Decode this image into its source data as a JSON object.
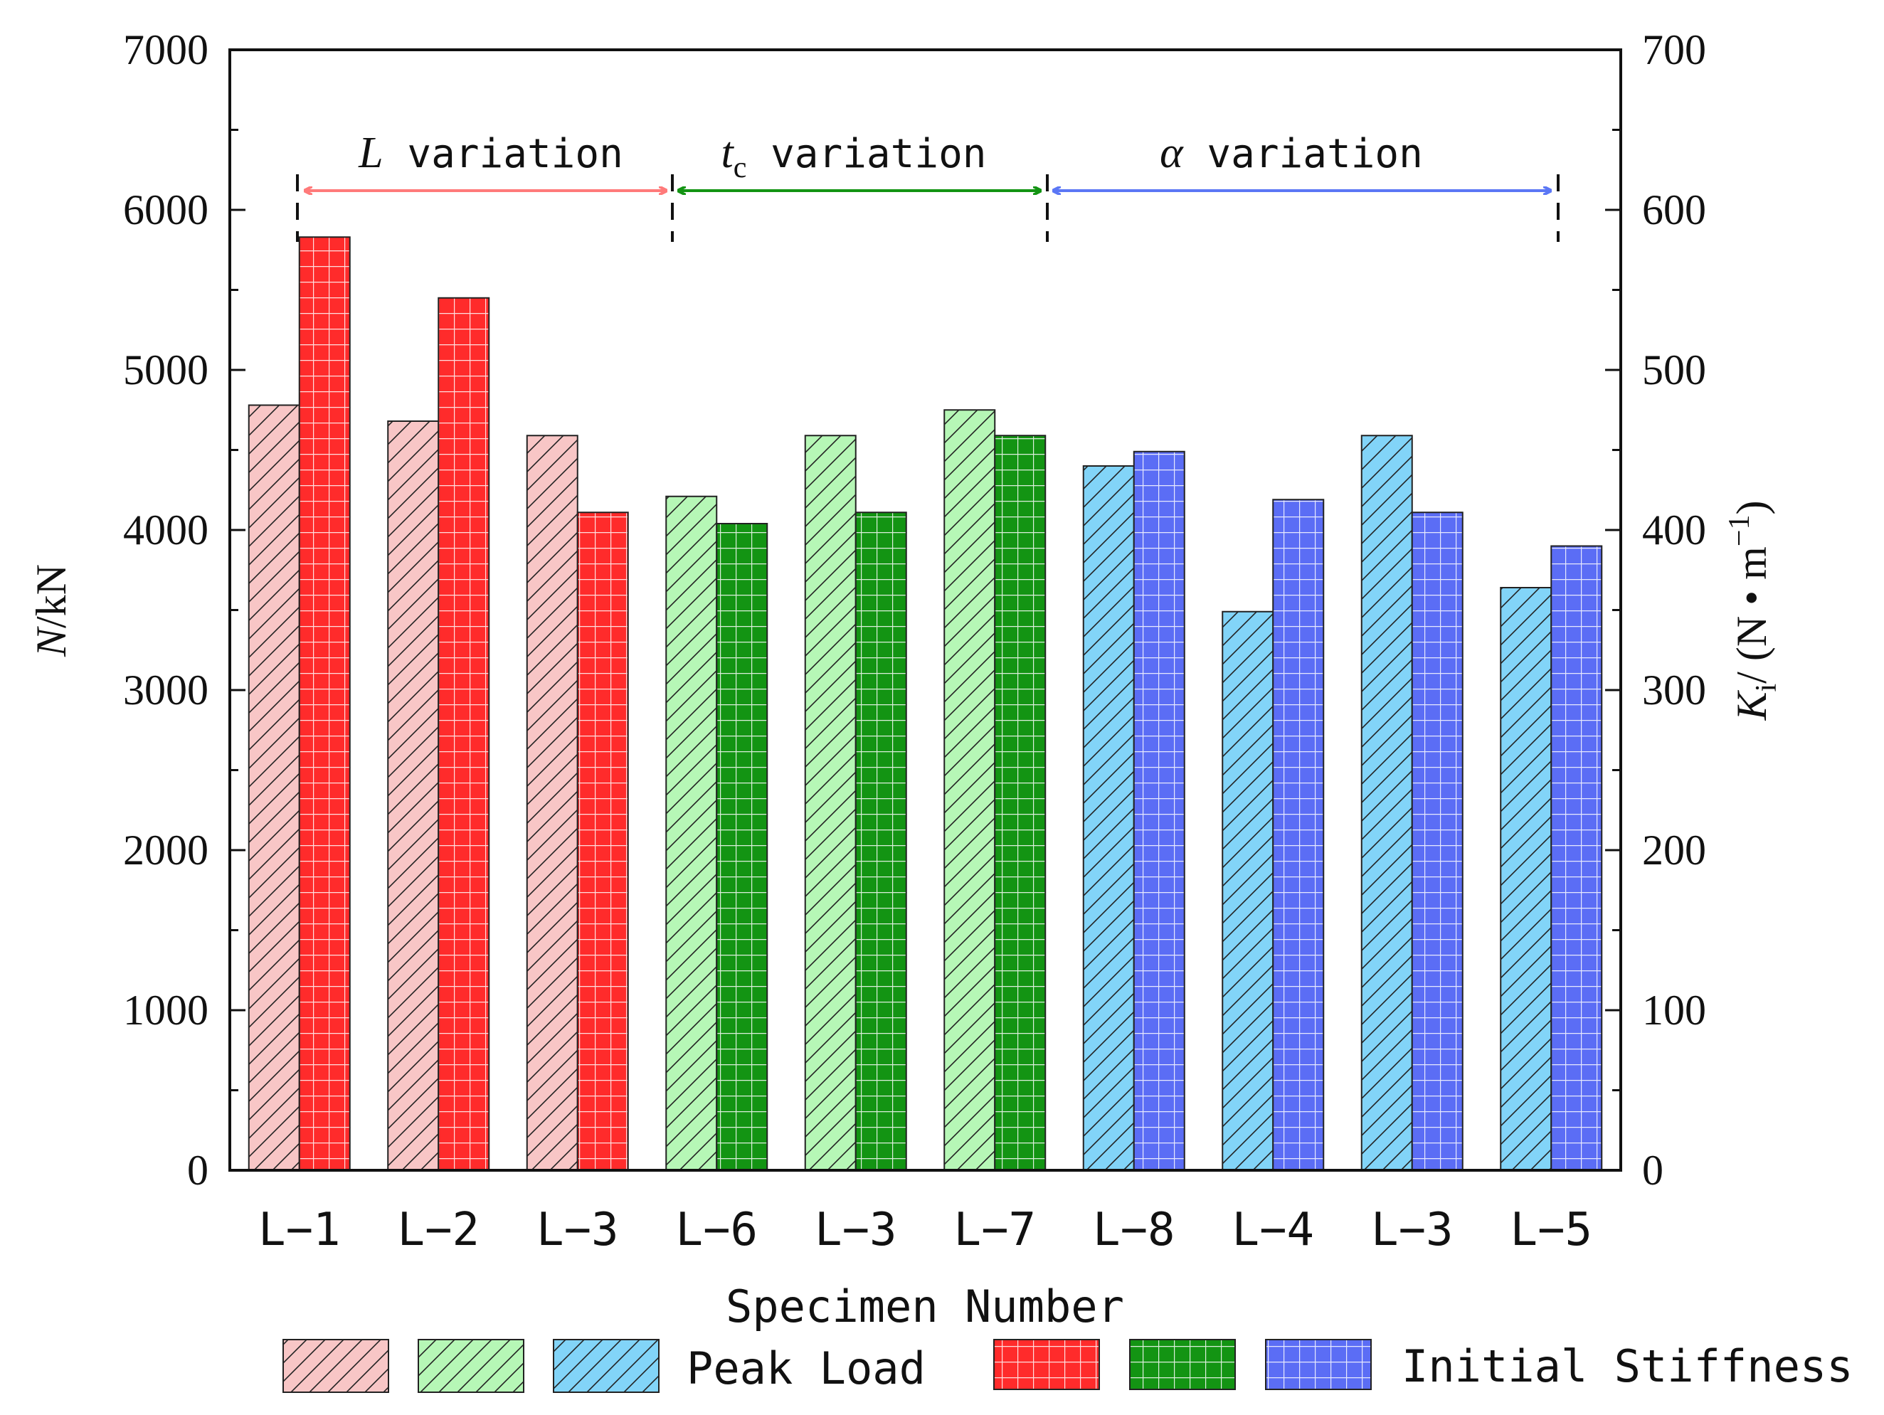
{
  "chart_data": {
    "type": "bar",
    "xlabel": "Specimen Number",
    "ylabel_left": {
      "italic": "N",
      "rest": "/kN"
    },
    "ylabel_right": {
      "italic": "K",
      "sub": "i",
      "rest": "/ (N • m",
      "sup": "−1",
      "close": ")"
    },
    "ylim_left": [
      0,
      7000
    ],
    "ylim_right": [
      0,
      700
    ],
    "left_ticks": [
      "0",
      "1000",
      "2000",
      "3000",
      "4000",
      "5000",
      "6000",
      "7000"
    ],
    "right_ticks": [
      "0",
      "100",
      "200",
      "300",
      "400",
      "500",
      "600",
      "700"
    ],
    "categories": [
      "L-1",
      "L-2",
      "L-3",
      "L-6",
      "L-3",
      "L-7",
      "L-8",
      "L-4",
      "L-3",
      "L-5"
    ],
    "category_labels": [
      "L−1",
      "L−2",
      "L−3",
      "L−6",
      "L−3",
      "L−7",
      "L−8",
      "L−4",
      "L−3",
      "L−5"
    ],
    "series": [
      {
        "name": "Peak Load",
        "axis": "left",
        "unit": "kN",
        "values": [
          4780,
          4680,
          4590,
          4210,
          4590,
          4750,
          4400,
          3490,
          4590,
          3640
        ]
      },
      {
        "name": "Initial Stiffness",
        "axis": "right",
        "unit": "N·m^-1",
        "values": [
          583,
          545,
          411,
          404,
          411,
          459,
          449,
          419,
          411,
          390
        ]
      }
    ],
    "groups": [
      {
        "label_italic": "L",
        "label_sub": "",
        "label_rest": " variation",
        "start": 0,
        "end": 2,
        "color_key": "red"
      },
      {
        "label_italic": "t",
        "label_sub": "c",
        "label_rest": " variation",
        "start": 3,
        "end": 5,
        "color_key": "green"
      },
      {
        "label_italic": "α",
        "label_sub": "",
        "label_rest": " variation",
        "start": 6,
        "end": 9,
        "color_key": "blue"
      }
    ],
    "legend": {
      "peak_label": "Peak Load",
      "stiffness_label": "Initial Stiffness"
    }
  },
  "colors": {
    "red": {
      "light": "#f8c6c6",
      "dark": "#ff2b2b",
      "arrow": "#ff7a7a"
    },
    "green": {
      "light": "#b6f7b6",
      "dark": "#139413",
      "arrow": "#139413"
    },
    "blue": {
      "light": "#82d4f8",
      "dark": "#5b6df5",
      "arrow": "#5b77f5"
    }
  }
}
